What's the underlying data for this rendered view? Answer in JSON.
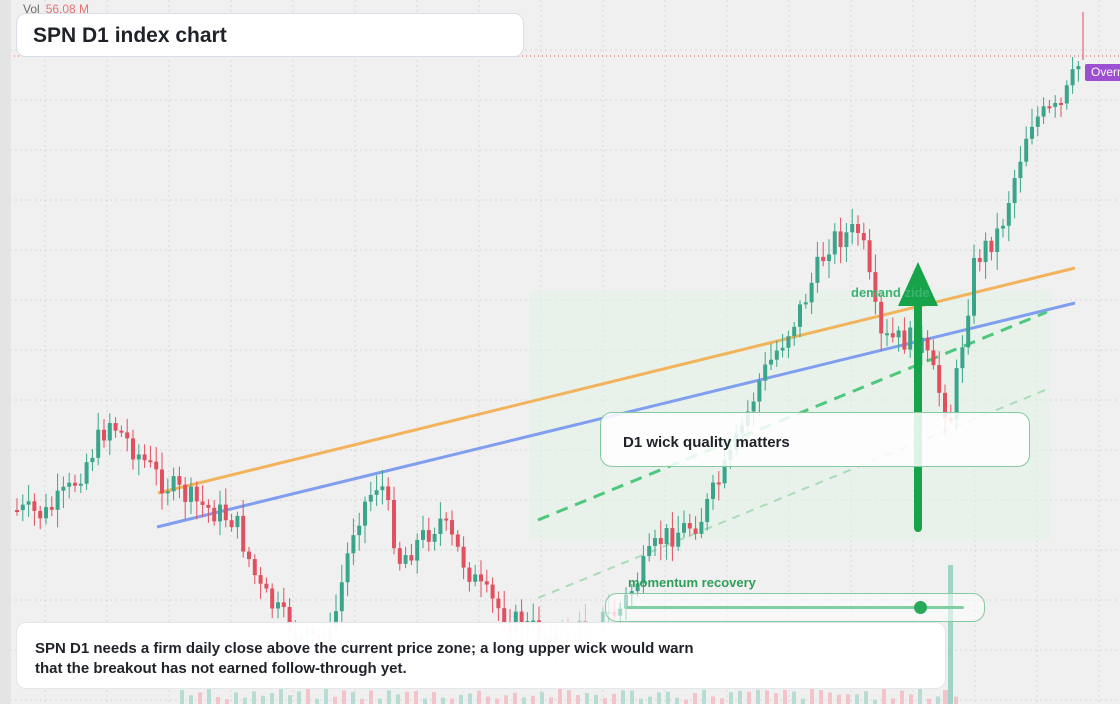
{
  "volume": {
    "label": "Vol",
    "value": "56.08 M"
  },
  "title": "SPN D1 index chart",
  "price_badge": "Overn",
  "callout": {
    "text": "D1 wick quality matters"
  },
  "demand_zone": {
    "label": "demand zide"
  },
  "momentum": {
    "label": "momentum recovery",
    "level": 0.87
  },
  "note": "SPN D1 needs a firm daily close above the current price zone; a long upper wick would warn that the breakout has not earned follow-through yet.",
  "colors": {
    "up": "#3aa58a",
    "down": "#e0505f",
    "orange_line": "#f2b35c",
    "blue_line": "#7f9ef0",
    "green_trend": "#4fc77c",
    "arrow": "#16a34a",
    "badge": "#9c4fd0",
    "background": "#f0f0f0"
  },
  "icons": {
    "arrow": "up-arrow-icon"
  }
}
